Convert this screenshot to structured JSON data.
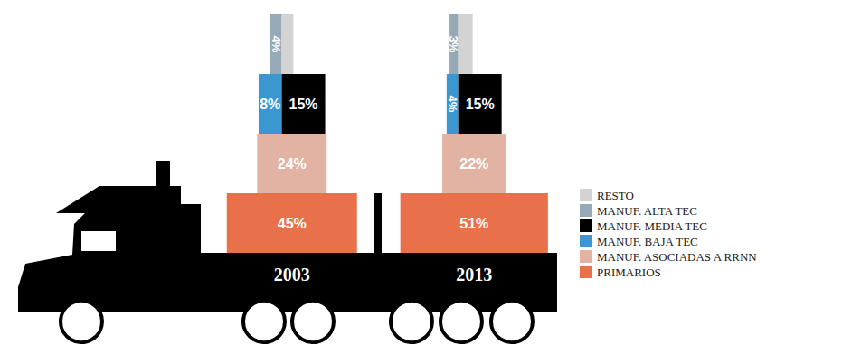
{
  "chart_data": {
    "type": "bar",
    "stacked": true,
    "data_labels": true,
    "tick_labels": "x",
    "legend": "right",
    "categories": [
      "2003",
      "2013"
    ],
    "series": [
      {
        "name": "PRIMARIOS",
        "color": "#e8704a",
        "values": [
          45,
          51
        ],
        "value_labels": [
          "45%",
          "51%"
        ]
      },
      {
        "name": "MANUF. ASOCIADAS A RRNN",
        "color": "#e2b3a3",
        "values": [
          24,
          22
        ],
        "value_labels": [
          "24%",
          "22%"
        ]
      },
      {
        "name": "MANUF. BAJA TEC",
        "color": "#3a97d0",
        "values": [
          8,
          4
        ],
        "value_labels": [
          "8%",
          "4%"
        ]
      },
      {
        "name": "MANUF. MEDIA TEC",
        "color": "#000000",
        "values": [
          15,
          15
        ],
        "value_labels": [
          "15%",
          "15%"
        ]
      },
      {
        "name": "MANUF. ALTA TEC",
        "color": "#95aab6",
        "values": [
          4,
          3
        ],
        "value_labels": [
          "4%",
          "3%"
        ]
      },
      {
        "name": "RESTO",
        "color": "#d3d3d3",
        "values": [
          4,
          5
        ]
      }
    ]
  }
}
